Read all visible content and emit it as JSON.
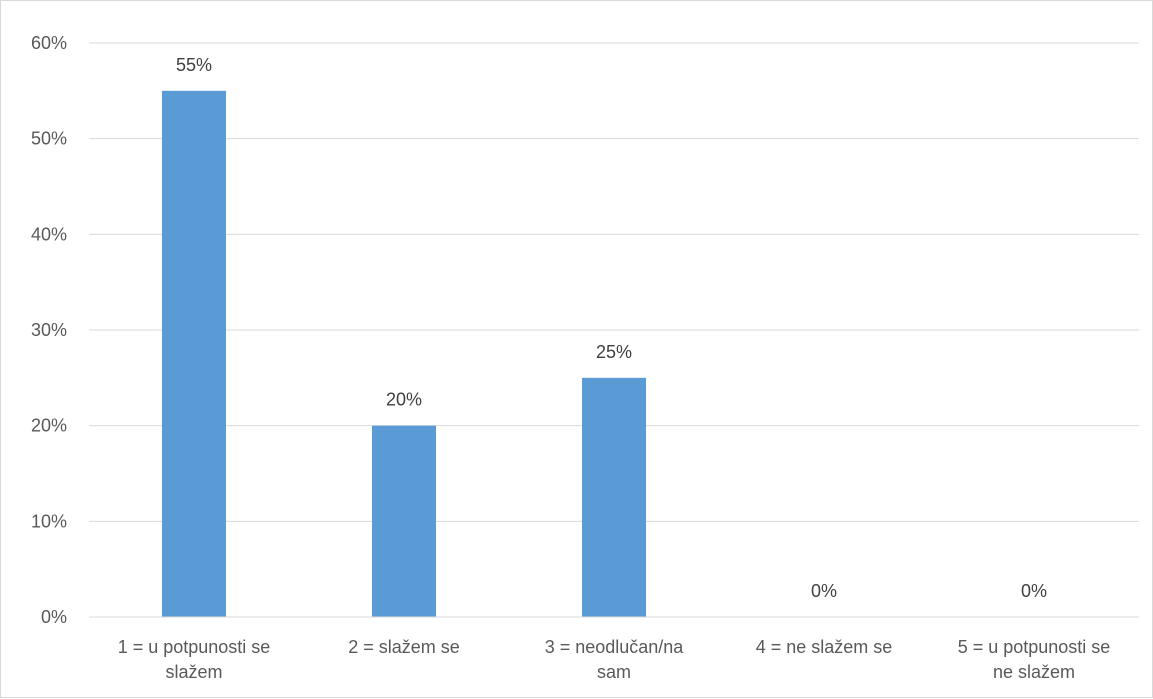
{
  "chart_data": {
    "type": "bar",
    "title": "",
    "xlabel": "",
    "ylabel": "",
    "categories": [
      [
        "1 = u potpunosti se",
        "slažem"
      ],
      [
        "2 = slažem se"
      ],
      [
        "3 = neodlučan/na",
        "sam"
      ],
      [
        "4 = ne slažem se"
      ],
      [
        "5 = u potpunosti se",
        "ne slažem"
      ]
    ],
    "values": [
      55,
      20,
      25,
      0,
      0
    ],
    "data_labels": [
      "55%",
      "20%",
      "25%",
      "0%",
      "0%"
    ],
    "ylim": [
      0,
      60
    ],
    "y_ticks": [
      0,
      10,
      20,
      30,
      40,
      50,
      60
    ],
    "y_tick_labels": [
      "0%",
      "10%",
      "20%",
      "30%",
      "40%",
      "50%",
      "60%"
    ],
    "grid": true,
    "legend": "none",
    "colors": {
      "bar": "#5b9bd5",
      "grid": "#d9d9d9",
      "axis": "#d9d9d9"
    }
  }
}
